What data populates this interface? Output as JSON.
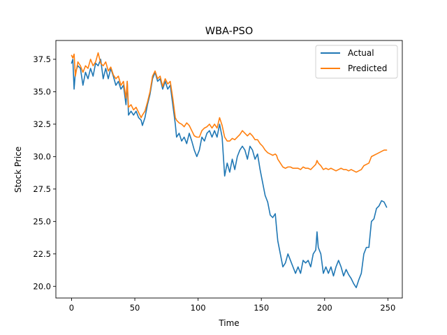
{
  "chart_data": {
    "type": "line",
    "title": "WBA-PSO",
    "xlabel": "Time",
    "ylabel": "Stock Price",
    "xlim": [
      -12.4,
      261.4
    ],
    "ylim": [
      19.1,
      38.95
    ],
    "xticks": [
      0,
      50,
      100,
      150,
      200,
      250
    ],
    "xtick_labels": [
      "0",
      "50",
      "100",
      "150",
      "200",
      "250"
    ],
    "yticks": [
      20.0,
      22.5,
      25.0,
      27.5,
      30.0,
      32.5,
      35.0,
      37.5
    ],
    "ytick_labels": [
      "20.0",
      "22.5",
      "25.0",
      "27.5",
      "30.0",
      "32.5",
      "35.0",
      "37.5"
    ],
    "grid": false,
    "legend_position": "top-right",
    "series": [
      {
        "name": "Actual",
        "color": "#1f77b4",
        "points": [
          [
            0,
            37.2
          ],
          [
            1,
            37.5
          ],
          [
            2,
            35.2
          ],
          [
            3,
            36.5
          ],
          [
            5,
            37.0
          ],
          [
            7,
            36.8
          ],
          [
            9,
            35.5
          ],
          [
            11,
            36.5
          ],
          [
            13,
            36.0
          ],
          [
            15,
            36.8
          ],
          [
            17,
            36.2
          ],
          [
            19,
            37.2
          ],
          [
            21,
            37.0
          ],
          [
            23,
            37.5
          ],
          [
            25,
            36.0
          ],
          [
            27,
            36.8
          ],
          [
            29,
            36.0
          ],
          [
            31,
            36.8
          ],
          [
            33,
            36.2
          ],
          [
            35,
            35.5
          ],
          [
            37,
            35.8
          ],
          [
            39,
            35.2
          ],
          [
            41,
            35.5
          ],
          [
            43,
            34.0
          ],
          [
            44,
            35.8
          ],
          [
            45,
            33.2
          ],
          [
            47,
            33.5
          ],
          [
            49,
            33.2
          ],
          [
            51,
            33.5
          ],
          [
            53,
            33.0
          ],
          [
            55,
            32.8
          ],
          [
            56,
            32.4
          ],
          [
            58,
            33.0
          ],
          [
            60,
            34.0
          ],
          [
            62,
            34.8
          ],
          [
            64,
            36.0
          ],
          [
            66,
            36.5
          ],
          [
            68,
            35.8
          ],
          [
            70,
            36.0
          ],
          [
            72,
            35.2
          ],
          [
            74,
            35.8
          ],
          [
            76,
            35.2
          ],
          [
            78,
            35.5
          ],
          [
            80,
            34.0
          ],
          [
            82,
            32.5
          ],
          [
            83,
            31.5
          ],
          [
            85,
            31.8
          ],
          [
            87,
            31.2
          ],
          [
            89,
            31.5
          ],
          [
            91,
            31.0
          ],
          [
            93,
            31.8
          ],
          [
            95,
            31.2
          ],
          [
            97,
            30.5
          ],
          [
            99,
            30.0
          ],
          [
            101,
            30.5
          ],
          [
            103,
            31.5
          ],
          [
            105,
            31.2
          ],
          [
            107,
            31.8
          ],
          [
            109,
            32.0
          ],
          [
            111,
            31.5
          ],
          [
            113,
            32.0
          ],
          [
            115,
            31.5
          ],
          [
            117,
            32.5
          ],
          [
            119,
            31.5
          ],
          [
            121,
            28.5
          ],
          [
            123,
            29.5
          ],
          [
            125,
            28.8
          ],
          [
            127,
            29.8
          ],
          [
            129,
            29.0
          ],
          [
            131,
            30.0
          ],
          [
            133,
            30.5
          ],
          [
            135,
            30.8
          ],
          [
            137,
            30.5
          ],
          [
            139,
            29.8
          ],
          [
            141,
            30.8
          ],
          [
            143,
            30.5
          ],
          [
            145,
            29.8
          ],
          [
            147,
            30.2
          ],
          [
            149,
            29.0
          ],
          [
            151,
            28.0
          ],
          [
            153,
            27.0
          ],
          [
            155,
            26.5
          ],
          [
            157,
            25.5
          ],
          [
            159,
            25.3
          ],
          [
            161,
            25.6
          ],
          [
            162,
            24.5
          ],
          [
            163,
            23.5
          ],
          [
            165,
            22.5
          ],
          [
            167,
            21.5
          ],
          [
            169,
            21.8
          ],
          [
            171,
            22.5
          ],
          [
            173,
            22.0
          ],
          [
            175,
            21.5
          ],
          [
            177,
            21.0
          ],
          [
            179,
            21.5
          ],
          [
            181,
            21.0
          ],
          [
            183,
            22.0
          ],
          [
            185,
            21.8
          ],
          [
            187,
            22.0
          ],
          [
            189,
            21.5
          ],
          [
            191,
            22.5
          ],
          [
            193,
            22.8
          ],
          [
            194,
            24.2
          ],
          [
            195,
            23.0
          ],
          [
            197,
            22.5
          ],
          [
            199,
            21.0
          ],
          [
            201,
            21.5
          ],
          [
            203,
            21.0
          ],
          [
            205,
            21.5
          ],
          [
            207,
            20.8
          ],
          [
            209,
            21.5
          ],
          [
            211,
            22.0
          ],
          [
            213,
            21.5
          ],
          [
            215,
            20.8
          ],
          [
            217,
            21.3
          ],
          [
            219,
            20.9
          ],
          [
            221,
            20.6
          ],
          [
            223,
            20.2
          ],
          [
            225,
            19.9
          ],
          [
            227,
            20.5
          ],
          [
            229,
            21.0
          ],
          [
            231,
            22.5
          ],
          [
            233,
            23.0
          ],
          [
            235,
            23.0
          ],
          [
            237,
            25.0
          ],
          [
            239,
            25.2
          ],
          [
            241,
            26.0
          ],
          [
            243,
            26.2
          ],
          [
            245,
            26.6
          ],
          [
            247,
            26.5
          ],
          [
            249,
            26.1
          ]
        ]
      },
      {
        "name": "Predicted",
        "color": "#ff7f0e",
        "points": [
          [
            0,
            37.8
          ],
          [
            1,
            37.6
          ],
          [
            2,
            37.9
          ],
          [
            3,
            36.2
          ],
          [
            5,
            37.3
          ],
          [
            7,
            37.0
          ],
          [
            9,
            36.5
          ],
          [
            11,
            37.0
          ],
          [
            13,
            36.8
          ],
          [
            15,
            37.5
          ],
          [
            17,
            37.0
          ],
          [
            19,
            37.3
          ],
          [
            21,
            38.0
          ],
          [
            23,
            37.2
          ],
          [
            25,
            37.0
          ],
          [
            27,
            37.3
          ],
          [
            29,
            36.6
          ],
          [
            31,
            36.9
          ],
          [
            33,
            36.3
          ],
          [
            35,
            36.0
          ],
          [
            37,
            36.2
          ],
          [
            39,
            35.5
          ],
          [
            41,
            35.8
          ],
          [
            43,
            34.5
          ],
          [
            44,
            35.8
          ],
          [
            45,
            33.8
          ],
          [
            47,
            34.0
          ],
          [
            49,
            33.6
          ],
          [
            51,
            33.8
          ],
          [
            53,
            33.4
          ],
          [
            55,
            33.0
          ],
          [
            56,
            33.2
          ],
          [
            58,
            33.5
          ],
          [
            60,
            34.2
          ],
          [
            62,
            35.0
          ],
          [
            64,
            36.2
          ],
          [
            66,
            36.6
          ],
          [
            68,
            36.0
          ],
          [
            70,
            36.2
          ],
          [
            72,
            35.4
          ],
          [
            74,
            36.0
          ],
          [
            76,
            35.6
          ],
          [
            78,
            35.8
          ],
          [
            80,
            34.5
          ],
          [
            82,
            33.0
          ],
          [
            83,
            32.8
          ],
          [
            85,
            32.6
          ],
          [
            87,
            32.5
          ],
          [
            89,
            32.3
          ],
          [
            91,
            32.6
          ],
          [
            93,
            32.4
          ],
          [
            95,
            32.0
          ],
          [
            97,
            31.6
          ],
          [
            99,
            31.5
          ],
          [
            101,
            31.5
          ],
          [
            103,
            32.0
          ],
          [
            105,
            32.2
          ],
          [
            107,
            32.3
          ],
          [
            109,
            32.5
          ],
          [
            111,
            32.2
          ],
          [
            113,
            32.5
          ],
          [
            115,
            32.2
          ],
          [
            117,
            33.0
          ],
          [
            119,
            32.4
          ],
          [
            121,
            31.5
          ],
          [
            123,
            31.2
          ],
          [
            125,
            31.2
          ],
          [
            127,
            31.4
          ],
          [
            129,
            31.3
          ],
          [
            131,
            31.5
          ],
          [
            133,
            31.7
          ],
          [
            135,
            32.0
          ],
          [
            137,
            31.8
          ],
          [
            139,
            31.6
          ],
          [
            141,
            31.8
          ],
          [
            143,
            31.6
          ],
          [
            145,
            31.3
          ],
          [
            147,
            31.3
          ],
          [
            149,
            31.0
          ],
          [
            151,
            30.8
          ],
          [
            153,
            30.5
          ],
          [
            155,
            30.3
          ],
          [
            157,
            30.2
          ],
          [
            159,
            30.1
          ],
          [
            161,
            30.2
          ],
          [
            162,
            30.1
          ],
          [
            163,
            29.8
          ],
          [
            165,
            29.5
          ],
          [
            167,
            29.2
          ],
          [
            169,
            29.1
          ],
          [
            171,
            29.2
          ],
          [
            173,
            29.2
          ],
          [
            175,
            29.1
          ],
          [
            177,
            29.1
          ],
          [
            179,
            29.1
          ],
          [
            181,
            29.0
          ],
          [
            183,
            29.2
          ],
          [
            185,
            29.1
          ],
          [
            187,
            29.1
          ],
          [
            189,
            29.0
          ],
          [
            191,
            29.2
          ],
          [
            193,
            29.4
          ],
          [
            194,
            29.7
          ],
          [
            195,
            29.5
          ],
          [
            197,
            29.3
          ],
          [
            199,
            29.0
          ],
          [
            201,
            29.1
          ],
          [
            203,
            29.0
          ],
          [
            205,
            29.1
          ],
          [
            207,
            29.0
          ],
          [
            209,
            28.9
          ],
          [
            211,
            29.0
          ],
          [
            213,
            29.1
          ],
          [
            215,
            29.0
          ],
          [
            217,
            29.0
          ],
          [
            219,
            28.9
          ],
          [
            221,
            29.0
          ],
          [
            223,
            28.9
          ],
          [
            225,
            28.8
          ],
          [
            227,
            28.9
          ],
          [
            229,
            29.0
          ],
          [
            231,
            29.3
          ],
          [
            233,
            29.4
          ],
          [
            235,
            29.5
          ],
          [
            237,
            30.0
          ],
          [
            239,
            30.1
          ],
          [
            241,
            30.2
          ],
          [
            243,
            30.3
          ],
          [
            245,
            30.4
          ],
          [
            247,
            30.5
          ],
          [
            249,
            30.5
          ]
        ]
      }
    ]
  }
}
